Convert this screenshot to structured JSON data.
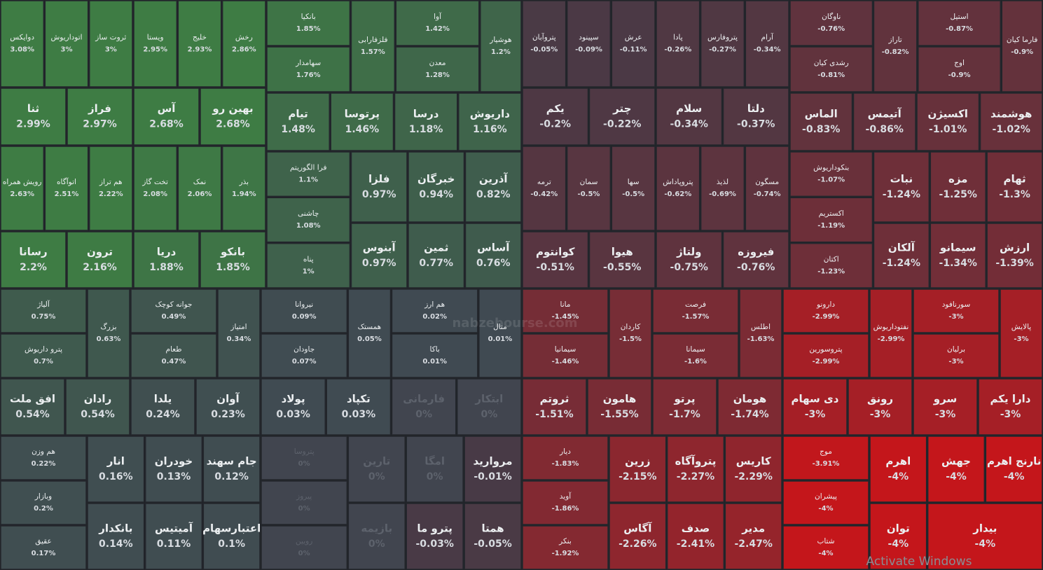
{
  "watermark": "nabzebourse.com",
  "os_notice": "Activate Windows",
  "tiles": [
    [
      "دوایکس",
      "3.08%"
    ],
    [
      "اتوداریوش",
      "3%"
    ],
    [
      "ثروت ساز",
      "3%"
    ],
    [
      "ویستا",
      "2.95%"
    ],
    [
      "خلیج",
      "2.93%"
    ],
    [
      "رخش",
      "2.86%"
    ],
    [
      "ثنا",
      "2.99%"
    ],
    [
      "فراز",
      "2.97%"
    ],
    [
      "آس",
      "2.68%"
    ],
    [
      "بهین رو",
      "2.68%"
    ],
    [
      "رویش همراه",
      "2.63%"
    ],
    [
      "اتوآگاه",
      "2.51%"
    ],
    [
      "هم تراز",
      "2.22%"
    ],
    [
      "تخت گاز",
      "2.08%"
    ],
    [
      "نمک",
      "2.06%"
    ],
    [
      "بذر",
      "1.94%"
    ],
    [
      "رسانا",
      "2.2%"
    ],
    [
      "ترون",
      "2.16%"
    ],
    [
      "دریا",
      "1.88%"
    ],
    [
      "بانکو",
      "1.85%"
    ],
    [
      "بانکیا",
      "1.85%"
    ],
    [
      "سهامدار",
      "1.76%"
    ],
    [
      "فلزفارابی",
      "1.57%"
    ],
    [
      "آوا",
      "1.42%"
    ],
    [
      "معدن",
      "1.28%"
    ],
    [
      "هوشیار",
      "1.2%"
    ],
    [
      "تیام",
      "1.48%"
    ],
    [
      "پرتوسا",
      "1.46%"
    ],
    [
      "درسا",
      "1.18%"
    ],
    [
      "داریوش",
      "1.16%"
    ],
    [
      "فرا الگوریتم",
      "1.1%"
    ],
    [
      "چاشنی",
      "1.08%"
    ],
    [
      "پناه",
      "1%"
    ],
    [
      "فلزا",
      "0.97%"
    ],
    [
      "خبرگان",
      "0.94%"
    ],
    [
      "آذرین",
      "0.82%"
    ],
    [
      "آبنوس",
      "0.97%"
    ],
    [
      "ثمین",
      "0.77%"
    ],
    [
      "آساس",
      "0.76%"
    ],
    [
      "پتروآبان",
      "-0.05%"
    ],
    [
      "سپینود",
      "-0.09%"
    ],
    [
      "عرش",
      "-0.11%"
    ],
    [
      "پادا",
      "-0.26%"
    ],
    [
      "پتروفارس",
      "-0.27%"
    ],
    [
      "آرام",
      "-0.34%"
    ],
    [
      "یکم",
      "-0.2%"
    ],
    [
      "چتر",
      "-0.22%"
    ],
    [
      "سلام",
      "-0.34%"
    ],
    [
      "دلتا",
      "-0.37%"
    ],
    [
      "ترمه",
      "-0.42%"
    ],
    [
      "سمان",
      "-0.5%"
    ],
    [
      "سها",
      "-0.5%"
    ],
    [
      "پتروپاداش",
      "-0.62%"
    ],
    [
      "لذیذ",
      "-0.69%"
    ],
    [
      "مسگون",
      "-0.74%"
    ],
    [
      "کوانتوم",
      "-0.51%"
    ],
    [
      "هیوا",
      "-0.55%"
    ],
    [
      "ولتاژ",
      "-0.75%"
    ],
    [
      "فیروزه",
      "-0.76%"
    ],
    [
      "ناوگان",
      "-0.76%"
    ],
    [
      "رشدی کیان",
      "-0.81%"
    ],
    [
      "تاراز",
      "-0.82%"
    ],
    [
      "استیل",
      "-0.87%"
    ],
    [
      "اوج",
      "-0.9%"
    ],
    [
      "فارما کیان",
      "-0.9%"
    ],
    [
      "الماس",
      "-0.83%"
    ],
    [
      "آتیمس",
      "-0.86%"
    ],
    [
      "اکسیژن",
      "-1.01%"
    ],
    [
      "هوشمند",
      "-1.02%"
    ],
    [
      "بنکوداریوش",
      "-1.07%"
    ],
    [
      "اکستریم",
      "-1.19%"
    ],
    [
      "اکتان",
      "-1.23%"
    ],
    [
      "نبات",
      "-1.24%"
    ],
    [
      "مزه",
      "-1.25%"
    ],
    [
      "ثهام",
      "-1.3%"
    ],
    [
      "آلکان",
      "-1.24%"
    ],
    [
      "سیمانو",
      "-1.34%"
    ],
    [
      "ارزش",
      "-1.39%"
    ],
    [
      "آلیاژ",
      "0.75%"
    ],
    [
      "پترو داریوش",
      "0.7%"
    ],
    [
      "بزرگ",
      "0.63%"
    ],
    [
      "جوانه کوچک",
      "0.49%"
    ],
    [
      "طعام",
      "0.47%"
    ],
    [
      "امتیاز",
      "0.34%"
    ],
    [
      "افق ملت",
      "0.54%"
    ],
    [
      "رادان",
      "0.54%"
    ],
    [
      "یلدا",
      "0.24%"
    ],
    [
      "آوان",
      "0.23%"
    ],
    [
      "هم وزن",
      "0.22%"
    ],
    [
      "وبازار",
      "0.2%"
    ],
    [
      "عقیق",
      "0.17%"
    ],
    [
      "انار",
      "0.16%"
    ],
    [
      "خودران",
      "0.13%"
    ],
    [
      "جام سهند",
      "0.12%"
    ],
    [
      "بانکدار",
      "0.14%"
    ],
    [
      "آمیتیس",
      "0.11%"
    ],
    [
      "اعتبارسهام",
      "0.1%"
    ],
    [
      "نیروانا",
      "0.09%"
    ],
    [
      "جاودان",
      "0.07%"
    ],
    [
      "همستک",
      "0.05%"
    ],
    [
      "هم ارز",
      "0.02%"
    ],
    [
      "باکا",
      "0.01%"
    ],
    [
      "متال",
      "0.01%"
    ],
    [
      "پولاد",
      "0.03%"
    ],
    [
      "تکپاد",
      "0.03%"
    ],
    [
      "فارمانی",
      "0%"
    ],
    [
      "ابتکار",
      "0%"
    ],
    [
      "پتروسا",
      "0%"
    ],
    [
      "پیروز",
      "0%"
    ],
    [
      "رویین",
      "0%"
    ],
    [
      "تارین",
      "0%"
    ],
    [
      "امگا",
      "0%"
    ],
    [
      "مرواريد",
      "-0.01%"
    ],
    [
      "بازیمه",
      "0%"
    ],
    [
      "پترو ما",
      "-0.03%"
    ],
    [
      "همتا",
      "-0.05%"
    ],
    [
      "مانا",
      "-1.45%"
    ],
    [
      "سیمانیا",
      "-1.46%"
    ],
    [
      "کاردان",
      "-1.5%"
    ],
    [
      "فرصت",
      "-1.57%"
    ],
    [
      "سیمانا",
      "-1.6%"
    ],
    [
      "اطلس",
      "-1.63%"
    ],
    [
      "ثروتم",
      "-1.51%"
    ],
    [
      "هامون",
      "-1.55%"
    ],
    [
      "پرتو",
      "-1.7%"
    ],
    [
      "هومان",
      "-1.74%"
    ],
    [
      "دیار",
      "-1.83%"
    ],
    [
      "آوید",
      "-1.86%"
    ],
    [
      "بنکر",
      "-1.92%"
    ],
    [
      "زرین",
      "-2.15%"
    ],
    [
      "پتروآگاه",
      "-2.27%"
    ],
    [
      "کاریس",
      "-2.29%"
    ],
    [
      "آگاس",
      "-2.26%"
    ],
    [
      "صدف",
      "-2.41%"
    ],
    [
      "مدیر",
      "-2.47%"
    ],
    [
      "دارونو",
      "-2.99%"
    ],
    [
      "پتروسورین",
      "-2.99%"
    ],
    [
      "نفتوداریوش",
      "-2.99%"
    ],
    [
      "سورنافود",
      "-3%"
    ],
    [
      "برلیان",
      "-3%"
    ],
    [
      "پالایش",
      "-3%"
    ],
    [
      "دی سهام",
      "-3%"
    ],
    [
      "رونق",
      "-3%"
    ],
    [
      "سرو",
      "-3%"
    ],
    [
      "دارا یکم",
      "-3%"
    ],
    [
      "موج",
      "-3.91%"
    ],
    [
      "پیشران",
      "-4%"
    ],
    [
      "شتاب",
      "-4%"
    ],
    [
      "اهرم",
      "-4%"
    ],
    [
      "جهش",
      "-4%"
    ],
    [
      "نارنج اهرم",
      "-4%"
    ],
    [
      "توان",
      "-4%"
    ],
    [
      "بیدار",
      "-4%"
    ]
  ]
}
